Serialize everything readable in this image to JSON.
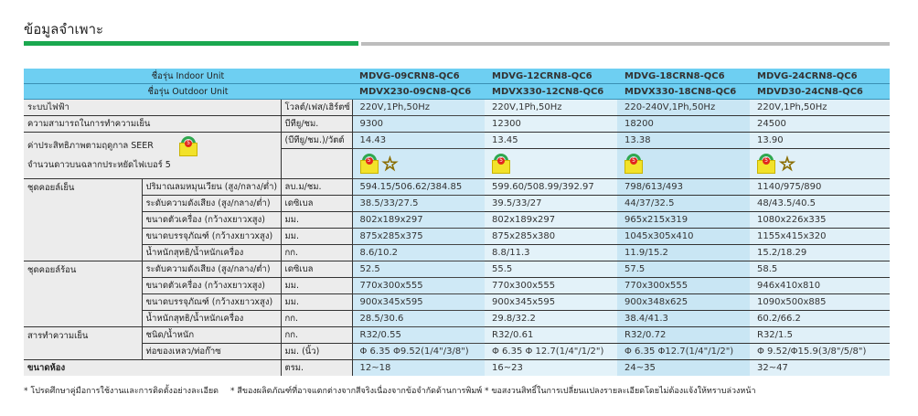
{
  "title": "ข้อมูลจำเพาะ",
  "header": {
    "indoor_label": "ชื่อรุ่น Indoor Unit",
    "outdoor_label": "ชื่อรุ่น Outdoor Unit",
    "indoor": [
      "MDVG-09CRN8-QC6",
      "MDVG-12CRN8-QC6",
      "MDVG-18CRN8-QC6",
      "MDVG-24CRN8-QC6"
    ],
    "outdoor": [
      "MDVX230-09CN8-QC6",
      "MDVX330-12CN8-QC6",
      "MDVX330-18CN8-QC6",
      "MDVD30-24CN8-QC6"
    ]
  },
  "rows": {
    "power": {
      "label": "ระบบไฟฟ้า",
      "unit": "โวลต์/เฟส/เฮิร์ตซ์",
      "values": [
        "220V,1Ph,50Hz",
        "220V,1Ph,50Hz",
        "220-240V,1Ph,50Hz",
        "220V,1Ph,50Hz"
      ]
    },
    "capacity": {
      "label": "ความสามารถในการทำความเย็น",
      "unit": "บีทียู/ชม.",
      "values": [
        "9300",
        "12300",
        "18200",
        "24500"
      ]
    },
    "seer": {
      "label": "ค่าประสิทธิภาพตามฤดูกาล  SEER",
      "unit": "(บีทียู/ชม.)/วัตต์",
      "values": [
        "14.43",
        "13.45",
        "13.38",
        "13.90"
      ]
    },
    "stars": {
      "label": "จำนวนดาวบนฉลากประหยัดไฟเบอร์ 5",
      "count": [
        1,
        0,
        0,
        1
      ]
    }
  },
  "groups": [
    {
      "label": "ชุดคอยล์เย็น",
      "items": [
        {
          "label": "ปริมาณลมหมุนเวียน (สูง/กลาง/ต่ำ)",
          "unit": "ลบ.ม/ชม.",
          "values": [
            "594.15/506.62/384.85",
            "599.60/508.99/392.97",
            "798/613/493",
            "1140/975/890"
          ]
        },
        {
          "label": "ระดับความดังเสียง (สูง/กลาง/ต่ำ)",
          "unit": "เดซิเบล",
          "values": [
            "38.5/33/27.5",
            "39.5/33/27",
            "44/37/32.5",
            "48/43.5/40.5"
          ]
        },
        {
          "label": "ขนาดตัวเครื่อง (กว้างxยาวxสูง)",
          "unit": "มม.",
          "values": [
            "802x189x297",
            "802x189x297",
            "965x215x319",
            "1080x226x335"
          ]
        },
        {
          "label": "ขนาดบรรจุภัณฑ์ (กว้างxยาวxสูง)",
          "unit": "มม.",
          "values": [
            "875x285x375",
            "875x285x380",
            "1045x305x410",
            "1155x415x320"
          ]
        },
        {
          "label": "น้ำหนักสุทธิ/น้ำหนักเครื่อง",
          "unit": "กก.",
          "values": [
            "8.6/10.2",
            "8.8/11.3",
            "11.9/15.2",
            "15.2/18.29"
          ]
        }
      ]
    },
    {
      "label": "ชุดคอยล์ร้อน",
      "items": [
        {
          "label": "ระดับความดังเสียง (สูง/กลาง/ต่ำ)",
          "unit": "เดซิเบล",
          "values": [
            "52.5",
            "55.5",
            "57.5",
            "58.5"
          ]
        },
        {
          "label": "ขนาดตัวเครื่อง (กว้างxยาวxสูง)",
          "unit": "มม.",
          "values": [
            "770x300x555",
            "770x300x555",
            "770x300x555",
            "946x410x810"
          ]
        },
        {
          "label": "ขนาดบรรจุภัณฑ์ (กว้างxยาวxสูง)",
          "unit": "มม.",
          "values": [
            "900x345x595",
            "900x345x595",
            "900x348x625",
            "1090x500x885"
          ]
        },
        {
          "label": "น้ำหนักสุทธิ/น้ำหนักเครื่อง",
          "unit": "กก.",
          "values": [
            "28.5/30.6",
            "29.8/32.2",
            "38.4/41.3",
            "60.2/66.2"
          ]
        }
      ]
    },
    {
      "label": "สารทำความเย็น",
      "items": [
        {
          "label": "ชนิด/น้ำหนัก",
          "unit": "กก.",
          "values": [
            "R32/0.55",
            "R32/0.61",
            "R32/0.72",
            "R32/1.5"
          ]
        },
        {
          "label": "ท่อของเหลว/ท่อก๊าซ",
          "unit": "มม. (นิ้ว)",
          "values": [
            "Φ 6.35  Φ9.52(1/4\"/3/8\")",
            "Φ 6.35 Φ 12.7(1/4\"/1/2\")",
            "Φ  6.35 Φ12.7(1/4\"/1/2\")",
            "Φ 9.52/Φ15.9(3/8\"/5/8\")"
          ]
        }
      ]
    }
  ],
  "room": {
    "label": "ขนาดห้อง",
    "unit": "ตรม.",
    "values": [
      "12~18",
      "16~23",
      "24~35",
      "32~47"
    ]
  },
  "footnotes": [
    "*  โปรดศึกษาคู่มือการใช้งานและการติดตั้งอย่างละเอียด",
    "*  สีของผลิตภัณฑ์ที่อาจแตกต่างจากสีจริงเนื่องจากข้อจำกัดด้านการพิมพ์",
    "*  ขอสงวนสิทธิ์ในการเปลี่ยนแปลงรายละเอียดโดยไม่ต้องแจ้งให้ทราบล่วงหน้า"
  ],
  "colors": {
    "header": "#6ecff2",
    "accent": "#1aa84f"
  }
}
